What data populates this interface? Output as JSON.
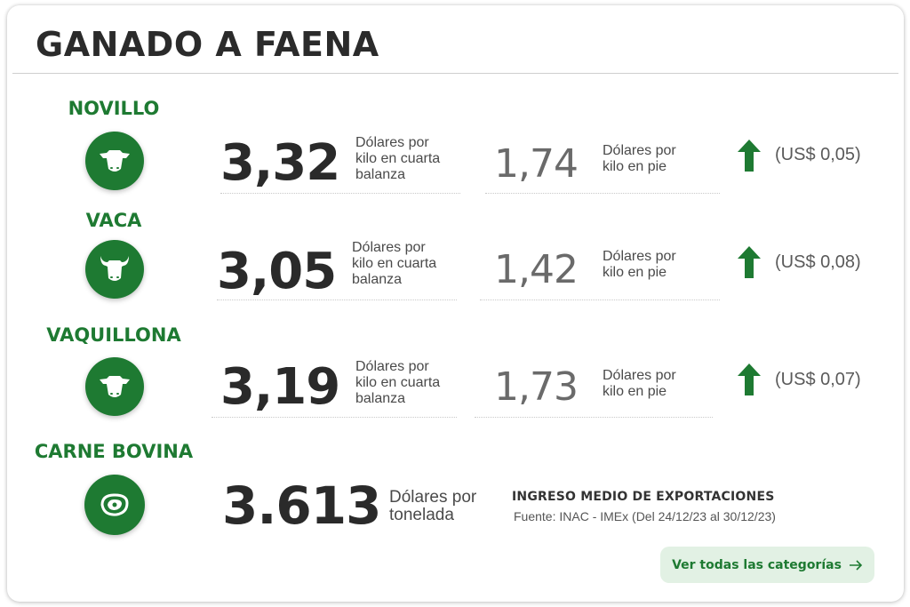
{
  "header": {
    "title": "GANADO A FAENA"
  },
  "categories": [
    {
      "name": "NOVILLO",
      "icon": "cow-head-icon",
      "price_carcass": "3,32",
      "carcass_unit": "Dólares por\nkilo en cuarta\nbalanza",
      "price_live": "1,74",
      "live_unit": "Dólares por\nkilo en pie",
      "trend": "up",
      "change": "(US$ 0,05)"
    },
    {
      "name": "VACA",
      "icon": "cow-horns-icon",
      "price_carcass": "3,05",
      "carcass_unit": "Dólares por\nkilo en cuarta\nbalanza",
      "price_live": "1,42",
      "live_unit": "Dólares por\nkilo en pie",
      "trend": "up",
      "change": "(US$ 0,08)"
    },
    {
      "name": "VAQUILLONA",
      "icon": "heifer-head-icon",
      "price_carcass": "3,19",
      "carcass_unit": "Dólares por\nkilo en cuarta\nbalanza",
      "price_live": "1,73",
      "live_unit": "Dólares por\nkilo en pie",
      "trend": "up",
      "change": "(US$ 0,07)"
    }
  ],
  "beef": {
    "name": "CARNE BOVINA",
    "icon": "meat-cut-icon",
    "price": "3.613",
    "unit": "Dólares por\ntonelada",
    "label": "INGRESO MEDIO DE EXPORTACIONES",
    "source": "Fuente: INAC - IMEx (Del 24/12/23 al 30/12/23)"
  },
  "cta": {
    "label": "Ver todas las categorías",
    "icon": "arrow-right-icon"
  },
  "colors": {
    "brand_green": "#1e7a32",
    "cta_bg": "#e2f1e4",
    "text_dark": "#2a2a2a"
  }
}
